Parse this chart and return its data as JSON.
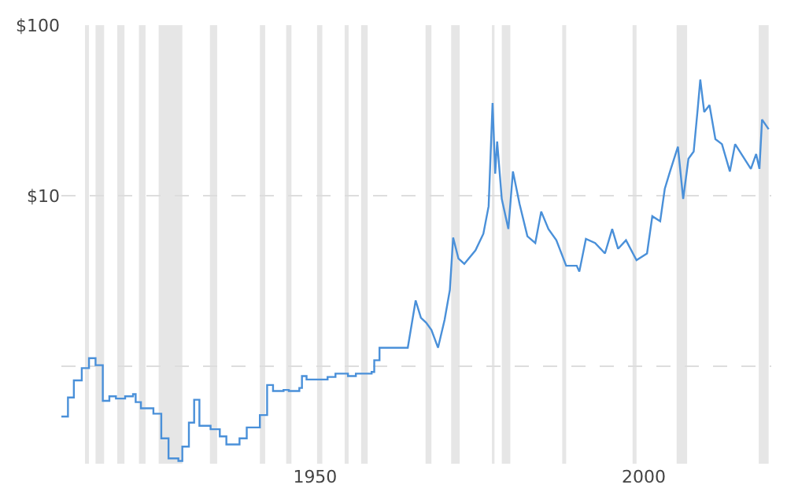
{
  "chart_data": {
    "type": "line",
    "log": "y",
    "xlim": [
      1911.4,
      2019.4
    ],
    "xticks": [
      1950,
      2000
    ],
    "ylim": [
      0.27,
      100
    ],
    "yticks": [
      {
        "value": 1,
        "label": null
      },
      {
        "value": 10,
        "label": "$10"
      },
      {
        "value": 100,
        "label": "$100"
      }
    ],
    "grid": "y",
    "series": [
      {
        "color": "#4a90d9",
        "x": [
          1911.4,
          1912.4,
          1912.4,
          1913.3,
          1913.3,
          1914.5,
          1914.5,
          1915.6,
          1915.6,
          1916.6,
          1916.6,
          1917.7,
          1917.7,
          1918.7,
          1918.7,
          1919.7,
          1919.7,
          1921.1,
          1921.1,
          1922.3,
          1922.3,
          1922.7,
          1922.7,
          1923.5,
          1923.5,
          1925.4,
          1925.4,
          1926.6,
          1926.6,
          1927.7,
          1927.7,
          1929.2,
          1929.2,
          1929.8,
          1929.8,
          1930.8,
          1930.8,
          1931.6,
          1931.6,
          1932.4,
          1932.4,
          1934.1,
          1934.1,
          1935.5,
          1935.5,
          1936.5,
          1936.5,
          1938.5,
          1938.5,
          1939.6,
          1939.6,
          1941.6,
          1941.6,
          1942.7,
          1942.7,
          1943.6,
          1943.6,
          1945.2,
          1945.2,
          1946.0,
          1946.0,
          1947.6,
          1947.6,
          1948.0,
          1948.0,
          1948.7,
          1948.7,
          1951.9,
          1951.9,
          1953.1,
          1953.1,
          1955.0,
          1955.0,
          1956.2,
          1956.2,
          1958.6,
          1958.6,
          1959.0,
          1959.0,
          1959.8,
          1959.8,
          1964.1,
          1965.3,
          1966.1,
          1966.9,
          1967.7,
          1968.7,
          1969.7,
          1970.5,
          1971.0,
          1971.8,
          1972.7,
          1974.4,
          1975.6,
          1976.4,
          1977.0,
          1977.4,
          1977.7,
          1978.4,
          1979.4,
          1980.1,
          1981.1,
          1982.3,
          1983.5,
          1984.4,
          1985.5,
          1986.7,
          1988.2,
          1989.8,
          1990.2,
          1991.2,
          1992.6,
          1994.1,
          1995.2,
          1996.1,
          1997.3,
          1998.9,
          2000.5,
          2001.3,
          2002.5,
          2003.2,
          2004.0,
          2005.2,
          2006.0,
          2006.8,
          2007.6,
          2008.2,
          2008.6,
          2009.2,
          2010.0,
          2010.9,
          2011.9,
          2013.1,
          2013.9,
          2015.1,
          2016.3,
          2017.1,
          2017.6,
          2018.0,
          2019.0
        ],
        "values": [
          0.51,
          0.51,
          0.66,
          0.66,
          0.83,
          0.83,
          0.98,
          0.98,
          1.12,
          1.12,
          1.02,
          1.02,
          0.63,
          0.63,
          0.67,
          0.67,
          0.65,
          0.65,
          0.67,
          0.67,
          0.69,
          0.69,
          0.62,
          0.62,
          0.57,
          0.57,
          0.53,
          0.53,
          0.38,
          0.38,
          0.29,
          0.29,
          0.28,
          0.28,
          0.34,
          0.34,
          0.47,
          0.47,
          0.64,
          0.64,
          0.45,
          0.45,
          0.43,
          0.43,
          0.39,
          0.39,
          0.35,
          0.35,
          0.38,
          0.38,
          0.44,
          0.44,
          0.52,
          0.52,
          0.78,
          0.78,
          0.72,
          0.72,
          0.73,
          0.73,
          0.72,
          0.72,
          0.75,
          0.75,
          0.88,
          0.88,
          0.84,
          0.84,
          0.87,
          0.87,
          0.91,
          0.91,
          0.88,
          0.88,
          0.91,
          0.91,
          0.93,
          0.93,
          1.09,
          1.09,
          1.29,
          1.29,
          2.44,
          1.93,
          1.81,
          1.64,
          1.29,
          1.88,
          2.81,
          5.7,
          4.3,
          4.0,
          4.8,
          6.0,
          8.7,
          35,
          13.5,
          20.8,
          9.6,
          6.4,
          13.9,
          9.0,
          5.8,
          5.3,
          8.1,
          6.4,
          5.5,
          3.9,
          3.9,
          3.6,
          5.6,
          5.3,
          4.6,
          6.4,
          4.9,
          5.5,
          4.2,
          4.6,
          7.6,
          7.1,
          11.0,
          13.9,
          19.4,
          9.6,
          16.5,
          18.2,
          32,
          48,
          31,
          34,
          21.5,
          20.1,
          13.9,
          20.1,
          17.0,
          14.4,
          17.6,
          14.4,
          28,
          24.6
        ]
      }
    ],
    "bands": [
      {
        "axis": "x",
        "from": 1915.0,
        "to": 1915.6,
        "color": "#e6e6e6"
      },
      {
        "axis": "x",
        "from": 1916.6,
        "to": 1917.9,
        "color": "#e6e6e6"
      },
      {
        "axis": "x",
        "from": 1919.9,
        "to": 1921.0,
        "color": "#e6e6e6"
      },
      {
        "axis": "x",
        "from": 1923.2,
        "to": 1924.2,
        "color": "#e6e6e6"
      },
      {
        "axis": "x",
        "from": 1926.2,
        "to": 1929.8,
        "color": "#e6e6e6"
      },
      {
        "axis": "x",
        "from": 1934.0,
        "to": 1935.1,
        "color": "#e6e6e6"
      },
      {
        "axis": "x",
        "from": 1941.6,
        "to": 1942.4,
        "color": "#e6e6e6"
      },
      {
        "axis": "x",
        "from": 1945.6,
        "to": 1946.4,
        "color": "#e6e6e6"
      },
      {
        "axis": "x",
        "from": 1950.3,
        "to": 1951.1,
        "color": "#e6e6e6"
      },
      {
        "axis": "x",
        "from": 1954.5,
        "to": 1955.1,
        "color": "#e6e6e6"
      },
      {
        "axis": "x",
        "from": 1957.0,
        "to": 1958.0,
        "color": "#e6e6e6"
      },
      {
        "axis": "x",
        "from": 1966.8,
        "to": 1967.7,
        "color": "#e6e6e6"
      },
      {
        "axis": "x",
        "from": 1970.7,
        "to": 1972.0,
        "color": "#e6e6e6"
      },
      {
        "axis": "x",
        "from": 1976.9,
        "to": 1977.3,
        "color": "#e6e6e6"
      },
      {
        "axis": "x",
        "from": 1978.4,
        "to": 1979.7,
        "color": "#e6e6e6"
      },
      {
        "axis": "x",
        "from": 1987.6,
        "to": 1988.2,
        "color": "#e6e6e6"
      },
      {
        "axis": "x",
        "from": 1998.3,
        "to": 1998.9,
        "color": "#e6e6e6"
      },
      {
        "axis": "x",
        "from": 2005.0,
        "to": 2006.6,
        "color": "#e6e6e6"
      },
      {
        "axis": "x",
        "from": 2017.5,
        "to": 2019.0,
        "color": "#e6e6e6"
      }
    ]
  }
}
